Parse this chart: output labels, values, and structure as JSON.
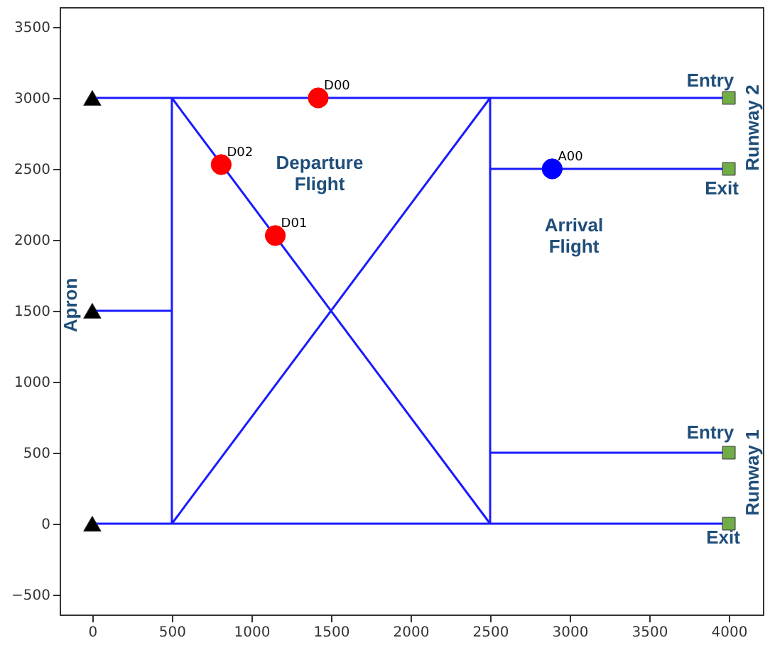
{
  "chart_data": {
    "type": "line",
    "xlim": [
      -205,
      4214
    ],
    "ylim": [
      -640,
      3640
    ],
    "xticks": [
      0,
      500,
      1000,
      1500,
      2000,
      2500,
      3000,
      3500,
      4000
    ],
    "yticks": [
      -500,
      0,
      500,
      1000,
      1500,
      2000,
      2500,
      3000,
      3500
    ],
    "grid": false,
    "series": [
      {
        "color": "#1a1aff",
        "x": [
          0,
          4000
        ],
        "values": [
          3000,
          3000
        ]
      },
      {
        "color": "#1a1aff",
        "x": [
          0,
          4000
        ],
        "values": [
          0,
          0
        ]
      },
      {
        "color": "#1a1aff",
        "x": [
          0,
          500
        ],
        "values": [
          1500,
          1500
        ]
      },
      {
        "color": "#1a1aff",
        "x": [
          500,
          500
        ],
        "values": [
          0,
          3000
        ]
      },
      {
        "color": "#1a1aff",
        "x": [
          2500,
          2500
        ],
        "values": [
          0,
          3000
        ]
      },
      {
        "color": "#1a1aff",
        "x": [
          500,
          2500
        ],
        "values": [
          3000,
          0
        ]
      },
      {
        "color": "#1a1aff",
        "x": [
          500,
          2500
        ],
        "values": [
          0,
          3000
        ]
      },
      {
        "color": "#1a1aff",
        "x": [
          2500,
          4000
        ],
        "values": [
          2500,
          2500
        ]
      },
      {
        "color": "#1a1aff",
        "x": [
          2500,
          4000
        ],
        "values": [
          500,
          500
        ]
      },
      {
        "type": "scatter",
        "marker": "triangle",
        "color": "#000000",
        "x": [
          0,
          0,
          0
        ],
        "values": [
          3000,
          1500,
          0
        ]
      },
      {
        "type": "scatter",
        "marker": "square",
        "color": "#70ad47",
        "x": [
          4000,
          4000,
          4000,
          4000
        ],
        "values": [
          3000,
          2500,
          500,
          0
        ]
      },
      {
        "type": "scatter",
        "marker": "circle",
        "name": "D00",
        "color": "#ff0000",
        "x": [
          1420
        ],
        "values": [
          3000
        ]
      },
      {
        "type": "scatter",
        "marker": "circle",
        "name": "D01",
        "color": "#ff0000",
        "x": [
          1150
        ],
        "values": [
          2030
        ]
      },
      {
        "type": "scatter",
        "marker": "circle",
        "name": "D02",
        "color": "#ff0000",
        "x": [
          810
        ],
        "values": [
          2530
        ]
      },
      {
        "type": "scatter",
        "marker": "circle",
        "name": "A00",
        "color": "#0000ff",
        "x": [
          2890
        ],
        "values": [
          2500
        ]
      }
    ],
    "annotations": [
      "Departure\nFlight",
      "Arrival\nFlight",
      "Entry",
      "Exit",
      "Entry",
      "Exit",
      "Runway 2",
      "Runway 1",
      "Apron"
    ]
  }
}
